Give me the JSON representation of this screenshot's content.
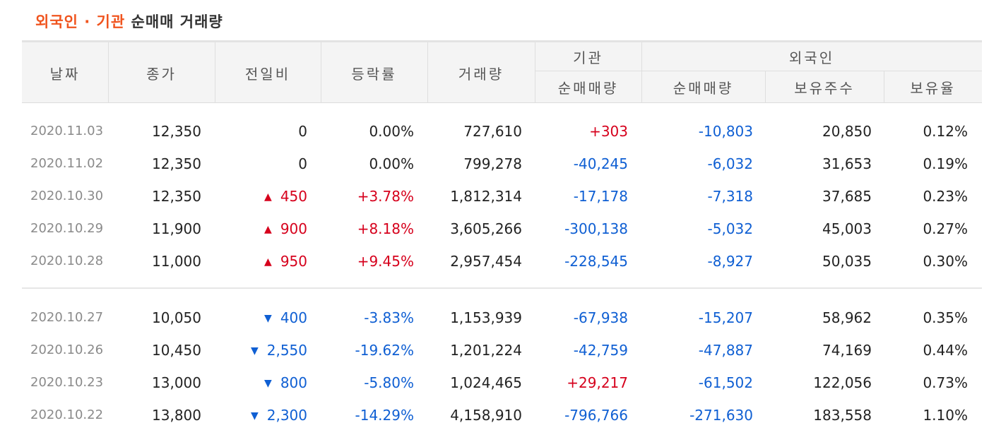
{
  "title": {
    "part1": "외국인 · 기관",
    "part2": "순매매 거래량"
  },
  "headers": {
    "date": "날짜",
    "close": "종가",
    "change": "전일비",
    "rate": "등락률",
    "volume": "거래량",
    "institution": "기관",
    "inst_net": "순매매량",
    "foreign": "외국인",
    "foreign_net": "순매매량",
    "foreign_hold": "보유주수",
    "foreign_ratio": "보유율"
  },
  "rows": [
    {
      "date": "2020.11.03",
      "close": "12,350",
      "dir": "none",
      "change": "0",
      "rate": "0.00%",
      "volume": "727,610",
      "inst": "+303",
      "foreign_net": "-10,803",
      "holdings": "20,850",
      "ratio": "0.12%"
    },
    {
      "date": "2020.11.02",
      "close": "12,350",
      "dir": "none",
      "change": "0",
      "rate": "0.00%",
      "volume": "799,278",
      "inst": "-40,245",
      "foreign_net": "-6,032",
      "holdings": "31,653",
      "ratio": "0.19%"
    },
    {
      "date": "2020.10.30",
      "close": "12,350",
      "dir": "up",
      "change": "450",
      "rate": "+3.78%",
      "volume": "1,812,314",
      "inst": "-17,178",
      "foreign_net": "-7,318",
      "holdings": "37,685",
      "ratio": "0.23%"
    },
    {
      "date": "2020.10.29",
      "close": "11,900",
      "dir": "up",
      "change": "900",
      "rate": "+8.18%",
      "volume": "3,605,266",
      "inst": "-300,138",
      "foreign_net": "-5,032",
      "holdings": "45,003",
      "ratio": "0.27%"
    },
    {
      "date": "2020.10.28",
      "close": "11,000",
      "dir": "up",
      "change": "950",
      "rate": "+9.45%",
      "volume": "2,957,454",
      "inst": "-228,545",
      "foreign_net": "-8,927",
      "holdings": "50,035",
      "ratio": "0.30%"
    },
    {
      "date": "2020.10.27",
      "close": "10,050",
      "dir": "down",
      "change": "400",
      "rate": "-3.83%",
      "volume": "1,153,939",
      "inst": "-67,938",
      "foreign_net": "-15,207",
      "holdings": "58,962",
      "ratio": "0.35%"
    },
    {
      "date": "2020.10.26",
      "close": "10,450",
      "dir": "down",
      "change": "2,550",
      "rate": "-19.62%",
      "volume": "1,201,224",
      "inst": "-42,759",
      "foreign_net": "-47,887",
      "holdings": "74,169",
      "ratio": "0.44%"
    },
    {
      "date": "2020.10.23",
      "close": "13,000",
      "dir": "down",
      "change": "800",
      "rate": "-5.80%",
      "volume": "1,024,465",
      "inst": "+29,217",
      "foreign_net": "-61,502",
      "holdings": "122,056",
      "ratio": "0.73%"
    },
    {
      "date": "2020.10.22",
      "close": "13,800",
      "dir": "down",
      "change": "2,300",
      "rate": "-14.29%",
      "volume": "4,158,910",
      "inst": "-796,766",
      "foreign_net": "-271,630",
      "holdings": "183,558",
      "ratio": "1.10%"
    }
  ],
  "icons": {
    "up": "triangle-up-icon",
    "down": "triangle-down-icon"
  },
  "colors": {
    "up": "#d6001c",
    "down": "#0f5fd3",
    "accent": "#f0541e"
  }
}
